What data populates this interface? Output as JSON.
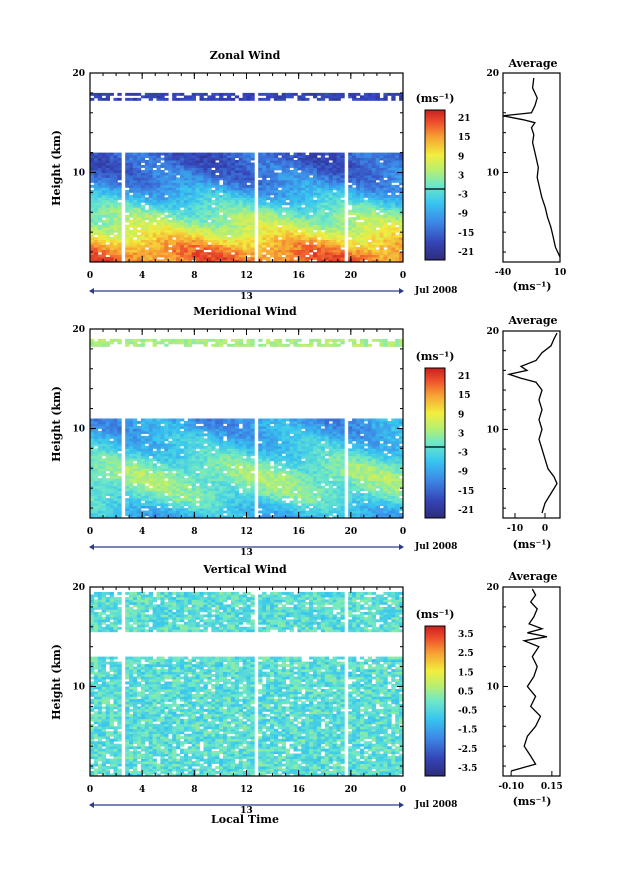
{
  "figure": {
    "x_axis_label": "Local Time",
    "date_label": "Jul 2008",
    "day_label": "13",
    "units_label": "(ms⁻¹)"
  },
  "chart_data": [
    {
      "type": "heatmap",
      "title": "Zonal Wind",
      "ylabel": "Height (km)",
      "xlabel": "",
      "x_ticks": [
        "0",
        "4",
        "8",
        "12",
        "16",
        "20",
        "0"
      ],
      "xlim": [
        0,
        24
      ],
      "y_ticks": [
        "20",
        "10"
      ],
      "ylim": [
        1,
        20
      ],
      "colorbar": {
        "label": "(ms⁻¹)",
        "ticks": [
          "21",
          "15",
          "9",
          "3",
          "-3",
          "-9",
          "-15",
          "-21"
        ],
        "range": [
          -24,
          24
        ],
        "zero_line": true
      },
      "data_gaps_hours": [
        [
          2.3,
          2.7
        ],
        [
          12.6,
          13.0
        ],
        [
          19.5,
          19.8
        ]
      ],
      "profile_by_height": [
        {
          "h": 1,
          "v": 18
        },
        {
          "h": 2,
          "v": 17
        },
        {
          "h": 3,
          "v": 13
        },
        {
          "h": 4,
          "v": 8
        },
        {
          "h": 5,
          "v": 4
        },
        {
          "h": 6,
          "v": 1
        },
        {
          "h": 7,
          "v": -4
        },
        {
          "h": 8,
          "v": -8
        },
        {
          "h": 9,
          "v": -12
        },
        {
          "h": 10,
          "v": -14
        },
        {
          "h": 11,
          "v": -16
        },
        {
          "h": 12,
          "v": -16
        }
      ],
      "upper_band": {
        "h": 17.5,
        "v": -19
      },
      "grid": false,
      "legend": "right"
    },
    {
      "type": "heatmap",
      "title": "Meridional Wind",
      "ylabel": "Height (km)",
      "xlabel": "",
      "x_ticks": [
        "0",
        "4",
        "8",
        "12",
        "16",
        "20",
        "0"
      ],
      "xlim": [
        0,
        24
      ],
      "y_ticks": [
        "20",
        "10"
      ],
      "ylim": [
        1,
        20
      ],
      "colorbar": {
        "label": "(ms⁻¹)",
        "ticks": [
          "21",
          "15",
          "9",
          "3",
          "-3",
          "-9",
          "-15",
          "-21"
        ],
        "range": [
          -24,
          24
        ],
        "zero_line": true
      },
      "data_gaps_hours": [
        [
          2.3,
          2.7
        ],
        [
          12.6,
          13.0
        ],
        [
          19.5,
          19.8
        ]
      ],
      "profile_by_height": [
        {
          "h": 1,
          "v": -8
        },
        {
          "h": 2,
          "v": -5
        },
        {
          "h": 3,
          "v": -1
        },
        {
          "h": 4,
          "v": 1
        },
        {
          "h": 5,
          "v": 2
        },
        {
          "h": 6,
          "v": 1
        },
        {
          "h": 7,
          "v": -2
        },
        {
          "h": 8,
          "v": -5
        },
        {
          "h": 9,
          "v": -7
        },
        {
          "h": 10,
          "v": -9
        },
        {
          "h": 11,
          "v": -10
        }
      ],
      "upper_band": {
        "h": 18.5,
        "v": 4
      },
      "grid": false,
      "legend": "right"
    },
    {
      "type": "heatmap",
      "title": "Vertical Wind",
      "ylabel": "Height (km)",
      "xlabel": "Local Time",
      "x_ticks": [
        "0",
        "4",
        "8",
        "12",
        "16",
        "20",
        "0"
      ],
      "xlim": [
        0,
        24
      ],
      "y_ticks": [
        "20",
        "10"
      ],
      "ylim": [
        1,
        20
      ],
      "colorbar": {
        "label": "(ms⁻¹)",
        "ticks": [
          "3.5",
          "2.5",
          "1.5",
          "0.5",
          "-0.5",
          "-1.5",
          "-2.5",
          "-3.5"
        ],
        "range": [
          -4,
          4
        ],
        "zero_line": false
      },
      "data_gaps_hours": [
        [
          2.3,
          2.7
        ],
        [
          12.6,
          13.0
        ],
        [
          19.5,
          19.8
        ]
      ],
      "filled_height_ranges": [
        [
          1,
          13
        ],
        [
          15.5,
          19.5
        ]
      ],
      "typical_value": -0.3,
      "grid": false,
      "legend": "right"
    },
    {
      "type": "line",
      "title": "Average",
      "xlabel": "(ms⁻¹)",
      "x_ticks": [
        "-40",
        "10"
      ],
      "xlim": [
        -40,
        10
      ],
      "y_ticks": [
        "20",
        "10"
      ],
      "ylim": [
        1,
        20
      ],
      "x": [
        10,
        6,
        4,
        2,
        -1,
        -3,
        -6,
        -8,
        -10,
        -9,
        -11,
        -13,
        -14,
        -13,
        -15,
        -12,
        -22,
        -40,
        -15,
        -12,
        -10,
        -14,
        -13
      ],
      "y": [
        1.5,
        2.5,
        3.5,
        4.5,
        5.5,
        6.5,
        7.5,
        8.5,
        9.5,
        10.5,
        11.5,
        12.5,
        13.0,
        13.8,
        14.5,
        15.0,
        15.3,
        15.7,
        16.0,
        16.7,
        17.5,
        18.5,
        19.5
      ]
    },
    {
      "type": "line",
      "title": "Average",
      "xlabel": "(ms⁻¹)",
      "x_ticks": [
        "-10",
        "0"
      ],
      "xlim": [
        -14,
        5
      ],
      "y_ticks": [
        "20",
        "10"
      ],
      "ylim": [
        1,
        20
      ],
      "x": [
        -1,
        0,
        2,
        4,
        3,
        1,
        0,
        -1,
        -2,
        -1,
        -2,
        -1,
        -2,
        -1,
        -3,
        -8,
        -12,
        -6,
        -8,
        -3,
        -1,
        2,
        3,
        4
      ],
      "y": [
        1.5,
        2.5,
        3.5,
        4.5,
        5.2,
        6.0,
        7.0,
        8.0,
        9.0,
        10.0,
        11.0,
        12.0,
        13.0,
        14.0,
        14.8,
        15.2,
        15.6,
        16.0,
        16.4,
        17.0,
        17.8,
        18.5,
        19.2,
        19.8
      ]
    },
    {
      "type": "line",
      "title": "Average",
      "xlabel": "(ms⁻¹)",
      "x_ticks": [
        "-0.10",
        "0.15"
      ],
      "xlim": [
        -0.15,
        0.2
      ],
      "y_ticks": [
        "20",
        "10"
      ],
      "ylim": [
        1,
        20
      ],
      "x": [
        -0.1,
        0.05,
        0.02,
        -0.02,
        0.0,
        0.05,
        0.08,
        0.02,
        0.05,
        0.0,
        0.04,
        0.06,
        0.03,
        0.07,
        -0.02,
        0.12,
        0.0,
        0.09,
        0.01,
        0.04,
        0.06,
        0.02,
        0.05,
        0.03
      ],
      "y": [
        1.5,
        2.2,
        3.0,
        4.0,
        5.0,
        6.0,
        7.0,
        8.0,
        9.0,
        10.0,
        11.0,
        12.0,
        13.0,
        14.0,
        14.6,
        15.0,
        15.4,
        15.8,
        16.3,
        17.0,
        17.8,
        18.5,
        19.2,
        19.8
      ]
    }
  ]
}
